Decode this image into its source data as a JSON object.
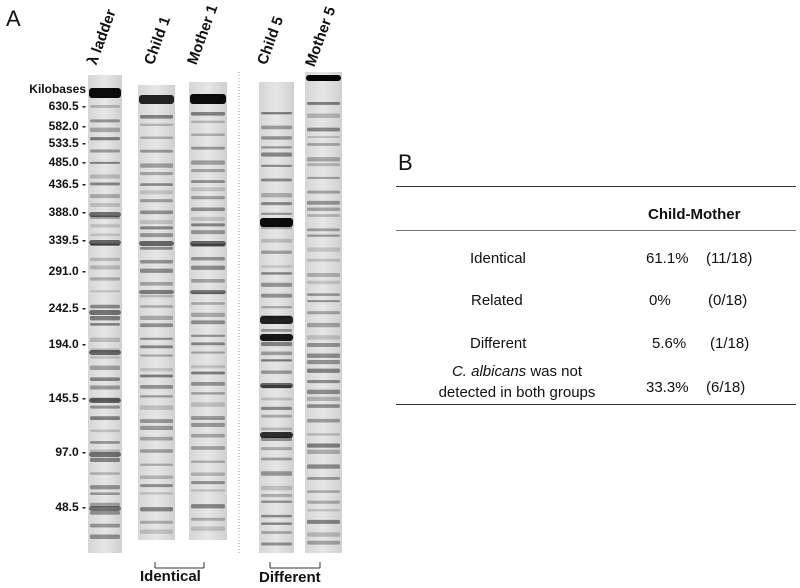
{
  "panel_a": {
    "letter": "A",
    "lane_labels": [
      "λ ladder",
      "Child 1",
      "Mother 1",
      "Child 5",
      "Mother 5"
    ],
    "axis_title": "Kilobases",
    "size_markers": [
      "630.5 -",
      "582.0 -",
      "533.5 -",
      "485.0 -",
      "436.5 -",
      "388.0 -",
      "339.5 -",
      "291.0 -",
      "242.5 -",
      "194.0 -",
      "145.5 -",
      "97.0 -",
      "48.5 -"
    ],
    "brackets": [
      "Identical",
      "Different"
    ]
  },
  "panel_b": {
    "letter": "B",
    "column_header": "Child-Mother",
    "rows": [
      {
        "label": "Identical",
        "percent": "61.1%",
        "count": "(11/18)"
      },
      {
        "label": "Related",
        "percent": "0%",
        "count": "(0/18)"
      },
      {
        "label": "Different",
        "percent": "5.6%",
        "count": "(1/18)"
      },
      {
        "label_italic": "C. albicans",
        "label_rest": " was not",
        "label_line2": "detected in both groups",
        "percent": "33.3%",
        "count": "(6/18)"
      }
    ]
  }
}
